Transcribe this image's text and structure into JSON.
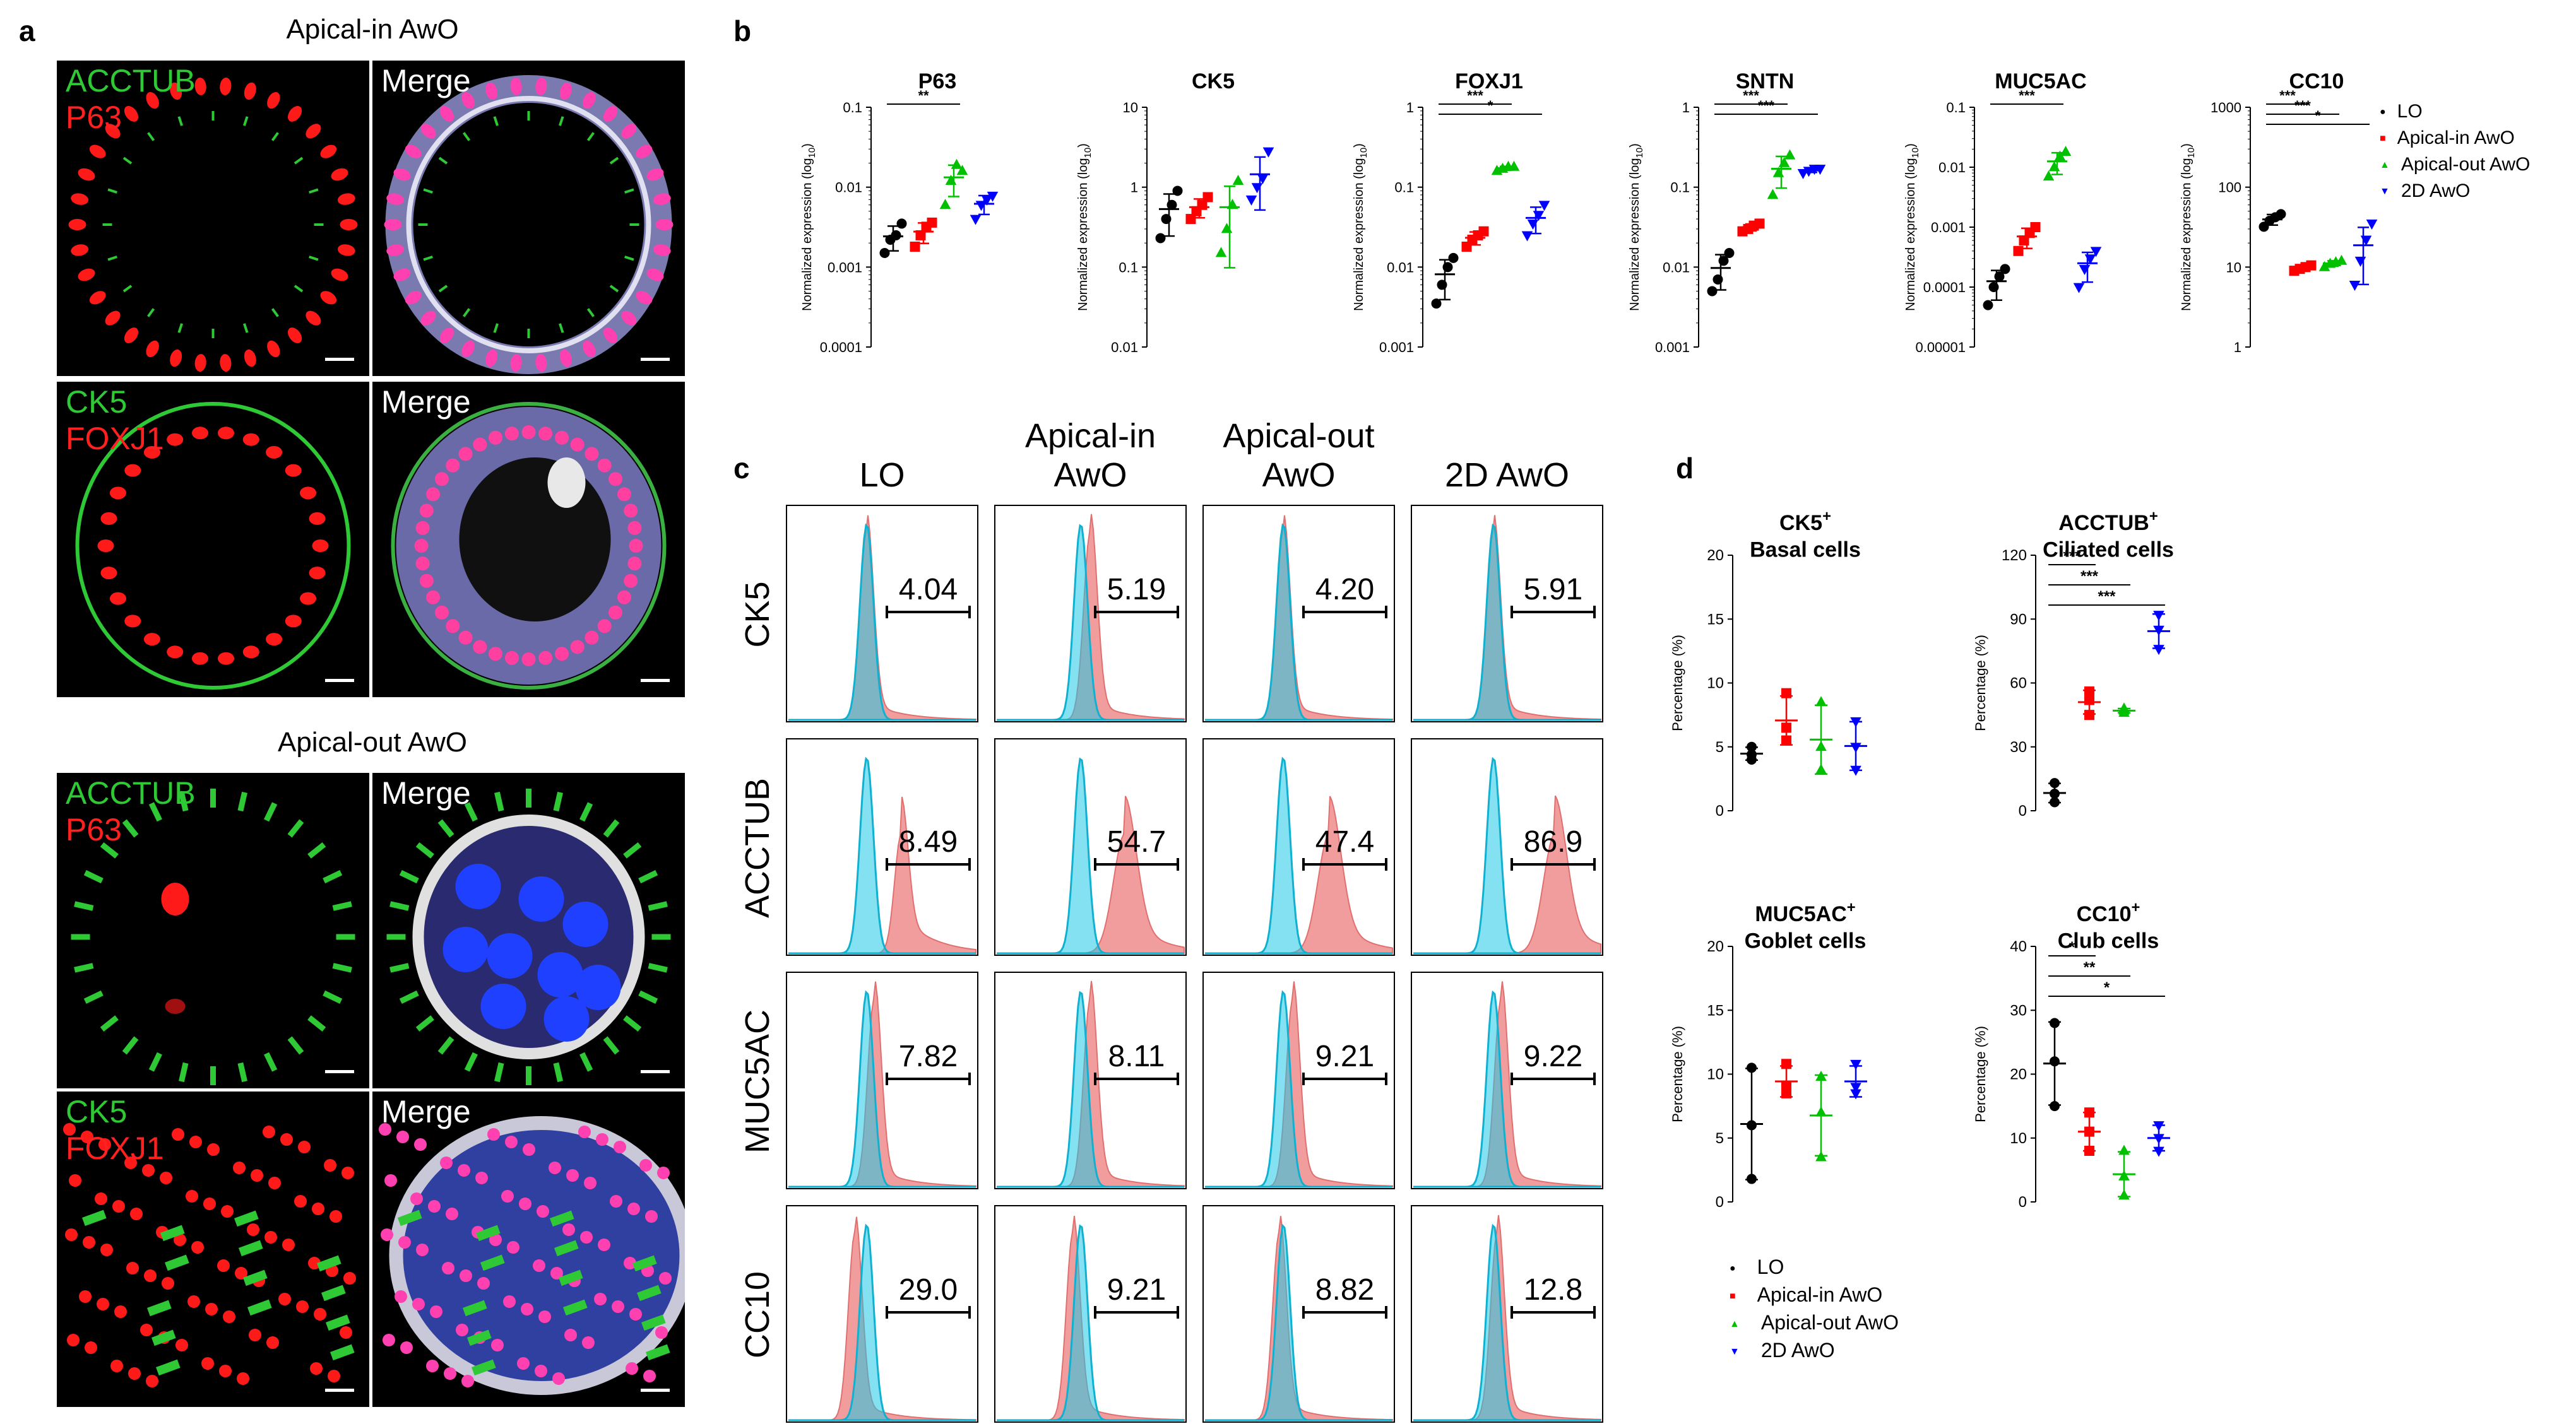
{
  "panel_labels": {
    "a": "a",
    "b": "b",
    "c": "c",
    "d": "d"
  },
  "panel_a": {
    "group1_title": "Apical-in AwO",
    "group2_title": "Apical-out AwO",
    "images": [
      {
        "labels": [
          "ACCTUB",
          "P63"
        ],
        "colors": [
          "#2ec935",
          "#ff2020"
        ],
        "kind": "ring-red"
      },
      {
        "labels": [
          "Merge"
        ],
        "colors": [
          "#ffffff"
        ],
        "kind": "ring-merge"
      },
      {
        "labels": [
          "CK5",
          "FOXJ1"
        ],
        "colors": [
          "#2ec935",
          "#ff2020"
        ],
        "kind": "ring-green"
      },
      {
        "labels": [
          "Merge"
        ],
        "colors": [
          "#ffffff"
        ],
        "kind": "blob-merge"
      },
      {
        "labels": [
          "ACCTUB",
          "P63"
        ],
        "colors": [
          "#2ec935",
          "#ff2020"
        ],
        "kind": "cilia"
      },
      {
        "labels": [
          "Merge"
        ],
        "colors": [
          "#ffffff"
        ],
        "kind": "cilia-merge"
      },
      {
        "labels": [
          "CK5",
          "FOXJ1"
        ],
        "colors": [
          "#2ec935",
          "#ff2020"
        ],
        "kind": "dots"
      },
      {
        "labels": [
          "Merge"
        ],
        "colors": [
          "#ffffff"
        ],
        "kind": "dots-merge"
      }
    ]
  },
  "legend_b": [
    {
      "label": "LO",
      "color": "#000000",
      "marker": "circle"
    },
    {
      "label": "Apical-in AwO",
      "color": "#ff0000",
      "marker": "square"
    },
    {
      "label": "Apical-out AwO",
      "color": "#00c000",
      "marker": "triangle"
    },
    {
      "label": "2D AwO",
      "color": "#0000ff",
      "marker": "triangle-down"
    }
  ],
  "panel_c": {
    "columns": [
      "LO",
      "Apical-in\nAwO",
      "Apical-out\nAwO",
      "2D AwO"
    ],
    "rows": [
      "CK5",
      "ACCTUB",
      "MUC5AC",
      "CC10"
    ],
    "values": [
      [
        "4.04",
        "5.19",
        "4.20",
        "5.91"
      ],
      [
        "8.49",
        "54.7",
        "47.4",
        "86.9"
      ],
      [
        "7.82",
        "8.11",
        "9.21",
        "9.22"
      ],
      [
        "29.0",
        "9.21",
        "8.82",
        "12.8"
      ]
    ],
    "colors": {
      "control": "#1ec8e6",
      "sample": "#f08c8c",
      "overlap": "#5aa0b4"
    }
  },
  "chart_data": [
    {
      "type": "scatter",
      "title": "P63",
      "ylabel": "Normalized expression (log",
      "ylabel_sub": "10",
      "yscale": "log",
      "ylim": [
        0.0001,
        0.1
      ],
      "yticks": [
        "0.1",
        "0.01",
        "0.001",
        "0.0001"
      ],
      "series": [
        {
          "name": "LO",
          "values": [
            0.0015,
            0.0022,
            0.0025,
            0.0035
          ]
        },
        {
          "name": "Apical-in AwO",
          "values": [
            0.0018,
            0.0025,
            0.0032,
            0.0036
          ]
        },
        {
          "name": "Apical-out AwO",
          "values": [
            0.006,
            0.012,
            0.019,
            0.016
          ]
        },
        {
          "name": "2D AwO",
          "values": [
            0.004,
            0.006,
            0.007,
            0.0078
          ]
        }
      ],
      "sig": [
        {
          "from": 0,
          "to": 2,
          "label": "**"
        }
      ]
    },
    {
      "type": "scatter",
      "title": "CK5",
      "ylabel": "Normalized expression (log",
      "ylabel_sub": "10",
      "yscale": "log",
      "ylim": [
        0.01,
        10
      ],
      "yticks": [
        "10",
        "1",
        "0.1",
        "0.01"
      ],
      "series": [
        {
          "name": "LO",
          "values": [
            0.23,
            0.4,
            0.6,
            0.9
          ]
        },
        {
          "name": "Apical-in AwO",
          "values": [
            0.4,
            0.5,
            0.6,
            0.75
          ]
        },
        {
          "name": "Apical-out AwO",
          "values": [
            0.15,
            0.3,
            0.6,
            1.2
          ]
        },
        {
          "name": "2D AwO",
          "values": [
            0.7,
            1.0,
            1.3,
            2.8
          ]
        }
      ],
      "sig": []
    },
    {
      "type": "scatter",
      "title": "FOXJ1",
      "ylabel": "Normalized expression (log",
      "ylabel_sub": "10",
      "yscale": "log",
      "ylim": [
        0.001,
        1
      ],
      "yticks": [
        "1",
        "0.1",
        "0.01",
        "0.001"
      ],
      "series": [
        {
          "name": "LO",
          "values": [
            0.0035,
            0.006,
            0.01,
            0.013
          ]
        },
        {
          "name": "Apical-in AwO",
          "values": [
            0.018,
            0.022,
            0.025,
            0.028
          ]
        },
        {
          "name": "Apical-out AwO",
          "values": [
            0.16,
            0.17,
            0.18,
            0.18
          ]
        },
        {
          "name": "2D AwO",
          "values": [
            0.025,
            0.035,
            0.045,
            0.06
          ]
        }
      ],
      "sig": [
        {
          "from": 0,
          "to": 2,
          "label": "***"
        },
        {
          "from": 0,
          "to": 3,
          "label": "*"
        }
      ]
    },
    {
      "type": "scatter",
      "title": "SNTN",
      "ylabel": "Normalized expression (log",
      "ylabel_sub": "10",
      "yscale": "log",
      "ylim": [
        0.001,
        1
      ],
      "yticks": [
        "1",
        "0.1",
        "0.01",
        "0.001"
      ],
      "series": [
        {
          "name": "LO",
          "values": [
            0.005,
            0.007,
            0.012,
            0.015
          ]
        },
        {
          "name": "Apical-in AwO",
          "values": [
            0.028,
            0.03,
            0.033,
            0.035
          ]
        },
        {
          "name": "Apical-out AwO",
          "values": [
            0.08,
            0.15,
            0.2,
            0.25
          ]
        },
        {
          "name": "2D AwO",
          "values": [
            0.15,
            0.16,
            0.17,
            0.17
          ]
        }
      ],
      "sig": [
        {
          "from": 0,
          "to": 2,
          "label": "***"
        },
        {
          "from": 0,
          "to": 3,
          "label": "***"
        }
      ]
    },
    {
      "type": "scatter",
      "title": "MUC5AC",
      "ylabel": "Normalized expression (log",
      "ylabel_sub": "10",
      "yscale": "log",
      "ylim": [
        1e-05,
        0.1
      ],
      "yticks": [
        "0.1",
        "0.01",
        "0.001",
        "0.0001",
        "0.00001"
      ],
      "series": [
        {
          "name": "LO",
          "values": [
            5e-05,
            0.0001,
            0.00015,
            0.0002
          ]
        },
        {
          "name": "Apical-in AwO",
          "values": [
            0.0004,
            0.0006,
            0.0008,
            0.001
          ]
        },
        {
          "name": "Apical-out AwO",
          "values": [
            0.007,
            0.01,
            0.015,
            0.018
          ]
        },
        {
          "name": "2D AwO",
          "values": [
            0.0001,
            0.0002,
            0.0003,
            0.0004
          ]
        }
      ],
      "sig": [
        {
          "from": 0,
          "to": 2,
          "label": "***"
        }
      ]
    },
    {
      "type": "scatter",
      "title": "CC10",
      "ylabel": "Normalized expression (log",
      "ylabel_sub": "10",
      "yscale": "log",
      "ylim": [
        1,
        1000
      ],
      "yticks": [
        "1000",
        "100",
        "10",
        "1"
      ],
      "series": [
        {
          "name": "LO",
          "values": [
            32,
            38,
            42,
            46
          ]
        },
        {
          "name": "Apical-in AwO",
          "values": [
            9,
            9.5,
            10,
            10.5
          ]
        },
        {
          "name": "Apical-out AwO",
          "values": [
            10,
            11,
            11.5,
            12
          ]
        },
        {
          "name": "2D AwO",
          "values": [
            6,
            12,
            22,
            35
          ]
        }
      ],
      "sig": [
        {
          "from": 0,
          "to": 1,
          "label": "***"
        },
        {
          "from": 0,
          "to": 2,
          "label": "***"
        },
        {
          "from": 0,
          "to": 3,
          "label": "*"
        }
      ]
    },
    {
      "type": "scatter",
      "title": "CK5",
      "title_sup": "+",
      "subtitle": "Basal cells",
      "ylabel": "Percentage (%)",
      "ylim": [
        0,
        20
      ],
      "yticks": [
        "20",
        "15",
        "10",
        "5",
        "0"
      ],
      "series": [
        {
          "name": "LO",
          "values": [
            4.0,
            4.4,
            5.0
          ]
        },
        {
          "name": "Apical-in AwO",
          "values": [
            5.5,
            6.5,
            9.2
          ]
        },
        {
          "name": "Apical-out AwO",
          "values": [
            3.2,
            5.0,
            8.5
          ]
        },
        {
          "name": "2D AwO",
          "values": [
            3.2,
            5.0,
            7.0
          ]
        }
      ],
      "sig": []
    },
    {
      "type": "scatter",
      "title": "ACCTUB",
      "title_sup": "+",
      "subtitle": "Ciliated cells",
      "ylabel": "Percentage (%)",
      "ylim": [
        0,
        120
      ],
      "yticks": [
        "120",
        "90",
        "60",
        "30",
        "0"
      ],
      "series": [
        {
          "name": "LO",
          "values": [
            4,
            8,
            13
          ]
        },
        {
          "name": "Apical-in AwO",
          "values": [
            45,
            52,
            56
          ]
        },
        {
          "name": "Apical-out AwO",
          "values": [
            46,
            47,
            48
          ]
        },
        {
          "name": "2D AwO",
          "values": [
            76,
            85,
            92
          ]
        }
      ],
      "sig": [
        {
          "from": 0,
          "to": 1,
          "label": "***"
        },
        {
          "from": 0,
          "to": 2,
          "label": "***"
        },
        {
          "from": 0,
          "to": 3,
          "label": "***"
        }
      ]
    },
    {
      "type": "scatter",
      "title": "MUC5AC",
      "title_sup": "+",
      "subtitle": "Goblet cells",
      "ylabel": "Percentage (%)",
      "ylim": [
        0,
        20
      ],
      "yticks": [
        "20",
        "15",
        "10",
        "5",
        "0"
      ],
      "series": [
        {
          "name": "LO",
          "values": [
            1.8,
            6.0,
            10.5
          ]
        },
        {
          "name": "Apical-in AwO",
          "values": [
            8.5,
            9.0,
            10.8
          ]
        },
        {
          "name": "Apical-out AwO",
          "values": [
            3.5,
            7.0,
            9.8
          ]
        },
        {
          "name": "2D AwO",
          "values": [
            8.5,
            9.0,
            10.8
          ]
        }
      ],
      "sig": []
    },
    {
      "type": "scatter",
      "title": "CC10",
      "title_sup": "+",
      "subtitle": "Club cells",
      "ylabel": "Percentage (%)",
      "ylim": [
        0,
        40
      ],
      "yticks": [
        "40",
        "30",
        "20",
        "10",
        "0"
      ],
      "series": [
        {
          "name": "LO",
          "values": [
            15,
            22,
            28
          ]
        },
        {
          "name": "Apical-in AwO",
          "values": [
            8,
            11,
            14
          ]
        },
        {
          "name": "Apical-out AwO",
          "values": [
            1,
            4,
            8
          ]
        },
        {
          "name": "2D AwO",
          "values": [
            8,
            10,
            12
          ]
        }
      ],
      "sig": [
        {
          "from": 0,
          "to": 1,
          "label": "*"
        },
        {
          "from": 0,
          "to": 2,
          "label": "**"
        },
        {
          "from": 0,
          "to": 3,
          "label": "*"
        }
      ]
    }
  ]
}
